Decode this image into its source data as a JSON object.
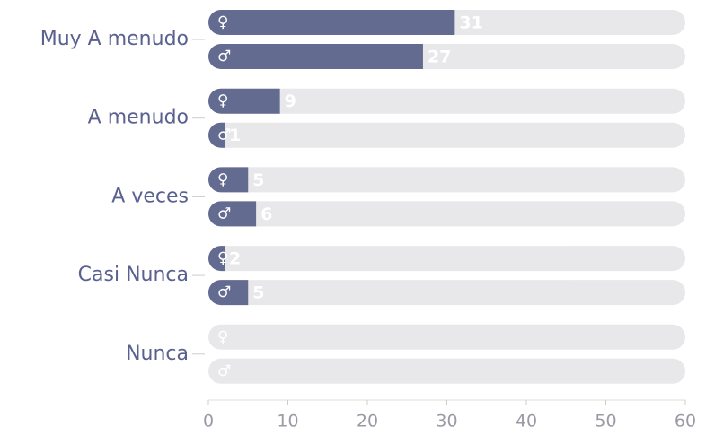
{
  "chart_data": {
    "type": "bar",
    "orientation": "horizontal",
    "categories": [
      "Muy A menudo",
      "A menudo",
      "A veces",
      "Casi Nunca",
      "Nunca"
    ],
    "series": [
      {
        "name": "♀",
        "color": "#636b91",
        "values": [
          31,
          9,
          5,
          2,
          0
        ]
      },
      {
        "name": "♂",
        "color": "#636b91",
        "values": [
          27,
          1,
          6,
          5,
          0
        ]
      }
    ],
    "track_color": "#e8e8ea",
    "xlim": [
      0,
      60
    ],
    "xticks": [
      0,
      10,
      20,
      30,
      40,
      50,
      60
    ]
  }
}
